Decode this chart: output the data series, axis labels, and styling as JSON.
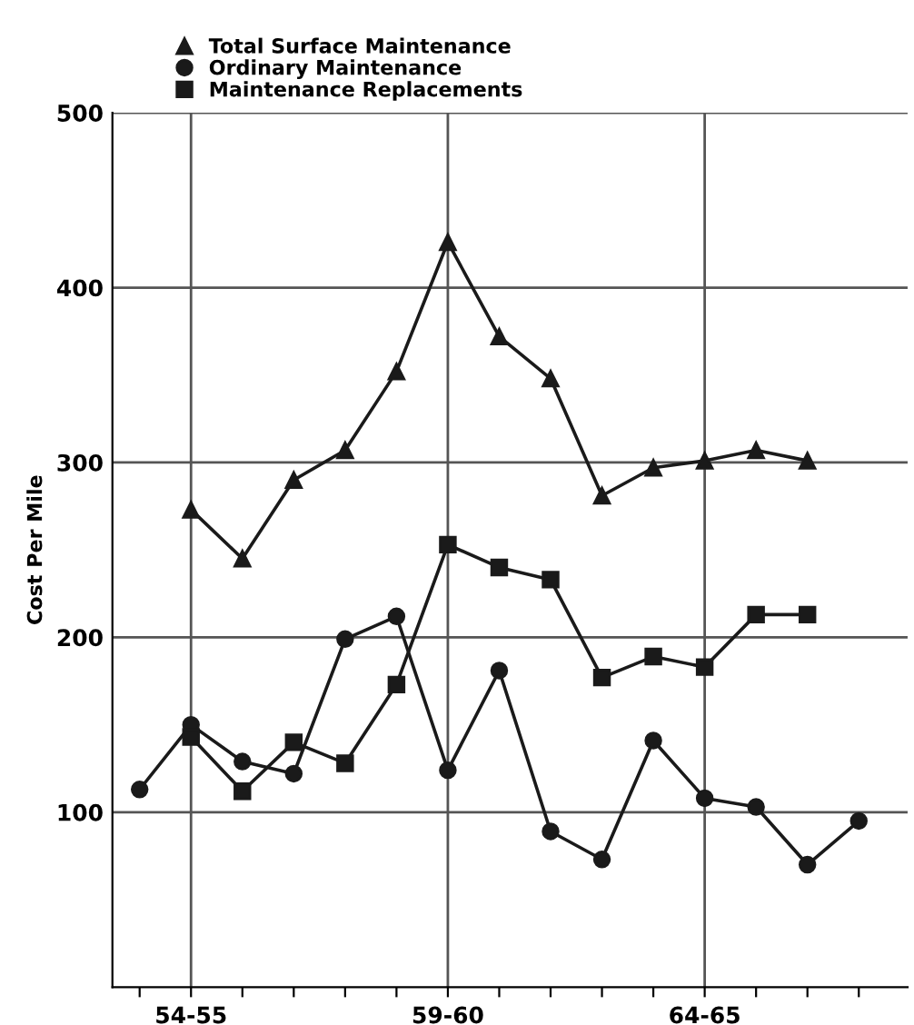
{
  "chart_data": {
    "type": "line",
    "ylabel": "Cost Per Mile",
    "categories": [
      null,
      "54-55",
      null,
      null,
      null,
      null,
      "59-60",
      null,
      null,
      null,
      null,
      "64-65",
      null,
      null,
      null
    ],
    "series": [
      {
        "name": "Total Surface Maintenance",
        "color": "#1a1a1a",
        "marker": "triangle",
        "values": [
          null,
          273,
          245,
          290,
          307,
          352,
          426,
          372,
          348,
          281,
          297,
          301,
          307,
          301,
          null
        ]
      },
      {
        "name": "Ordinary Maintenance",
        "color": "#1a1a1a",
        "marker": "circle",
        "values": [
          113,
          150,
          129,
          122,
          199,
          212,
          124,
          181,
          89,
          73,
          141,
          108,
          103,
          70,
          95
        ]
      },
      {
        "name": "Maintenance Replacements",
        "color": "#1a1a1a",
        "marker": "square",
        "values": [
          null,
          143,
          112,
          140,
          128,
          173,
          253,
          240,
          233,
          177,
          189,
          183,
          213,
          213,
          null
        ]
      }
    ],
    "ylim": [
      0,
      500
    ],
    "yticks": [
      100,
      200,
      300,
      400,
      500
    ],
    "grid": true,
    "legend": "top left",
    "line_style": "solid"
  }
}
